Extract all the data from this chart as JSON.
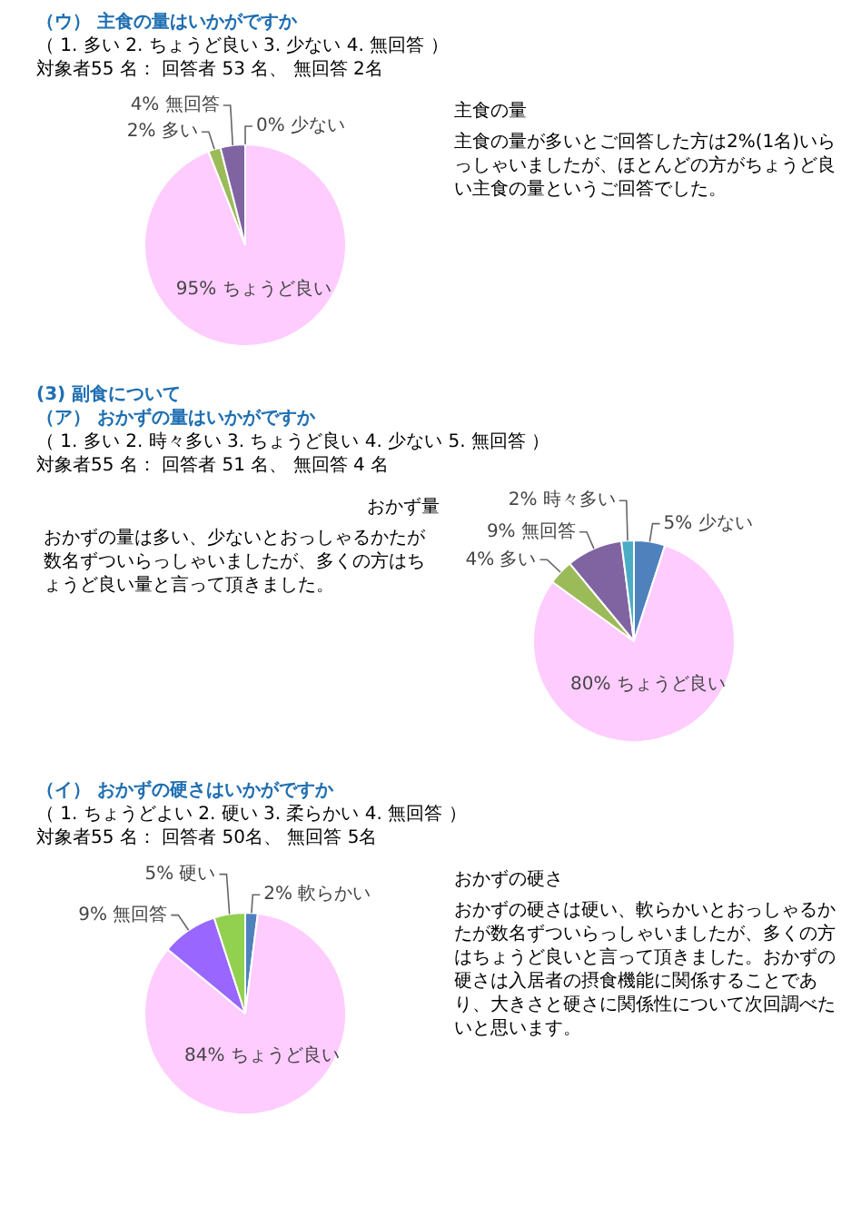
{
  "chart_data": [
    {
      "type": "pie",
      "title": "（ウ） 主食の量はいかがですか",
      "subtitle": "（ 1. 多い 2. ちょうど良い 3. 少ない 4. 無回答 ）",
      "annotations": [
        "対象者55 名： 回答者 53 名、 無回答 2名",
        "主食の量",
        "主食の量が多いとご回答した方は2%(1名)いらっしゃいましたが、ほとんどの方がちょうど良い主食の量というご回答でした。"
      ],
      "categories": [
        "少ない",
        "ちょうど良い",
        "多い",
        "無回答"
      ],
      "values": [
        0,
        95,
        2,
        4
      ],
      "value_labels": [
        "0%",
        "95%",
        "2%",
        "4%"
      ],
      "colors": [
        "#4f81bd",
        "#ffccff",
        "#9bbb59",
        "#8064a2"
      ]
    },
    {
      "type": "pie",
      "annotations": [
        "(3) 副食について",
        "（ア） おかずの量はいかがですか",
        "（ 1. 多い 2. 時々多い 3. ちょうど良い 4. 少ない 5. 無回答 ）",
        "対象者55 名： 回答者 51 名、 無回答 4 名",
        "おかず量",
        "おかずの量は多い、少ないとおっしゃるかたが数名ずついらっしゃいましたが、多くの方はちょうど良い量と言って頂きました。"
      ],
      "categories": [
        "少ない",
        "ちょうど良い",
        "多い",
        "無回答",
        "時々多い"
      ],
      "values": [
        5,
        80,
        4,
        9,
        2
      ],
      "value_labels": [
        "5%",
        "80%",
        "4%",
        "9%",
        "2%"
      ],
      "colors": [
        "#4f81bd",
        "#ffccff",
        "#9bbb59",
        "#8064a2",
        "#4bacc6"
      ]
    },
    {
      "type": "pie",
      "title": "（イ） おかずの硬さはいかがですか",
      "subtitle": "（ 1. ちょうどよい 2. 硬い 3. 柔らかい 4. 無回答 ）",
      "annotations": [
        "対象者55 名： 回答者 50名、 無回答 5名",
        "おかずの硬さ",
        "おかずの硬さは硬い、軟らかいとおっしゃるかたが数名ずついらっしゃいましたが、多くの方はちょうど良いと言って頂きました。おかずの硬さは入居者の摂食機能に関係することであり、大きさと硬さに関係性について次回調べたいと思います。"
      ],
      "categories": [
        "軟らかい",
        "ちょうど良い",
        "無回答",
        "硬い"
      ],
      "values": [
        2,
        84,
        9,
        5
      ],
      "value_labels": [
        "2%",
        "84%",
        "9%",
        "5%"
      ],
      "colors": [
        "#4f81bd",
        "#ffccff",
        "#9966ff",
        "#92d050"
      ]
    }
  ]
}
